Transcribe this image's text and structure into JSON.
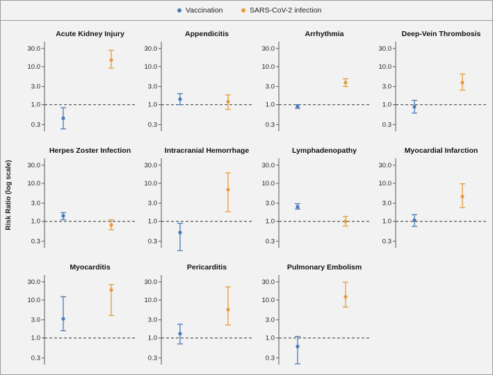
{
  "legend": {
    "vaccination": "Vaccination",
    "infection": "SARS-CoV-2 infection"
  },
  "colors": {
    "vaccination": "#4a78b8",
    "infection": "#e69a38",
    "reference_line": "#333333",
    "axis": "#555555"
  },
  "chart_data": {
    "type": "scatter",
    "subtype": "risk-ratio-errorbars",
    "ylabel": "Risk Ratio (log scale)",
    "yscale": "log",
    "ylim": [
      0.2,
      40
    ],
    "yticks": [
      0.3,
      1.0,
      3.0,
      10.0,
      30.0
    ],
    "ytick_labels": [
      "0.3",
      "1.0",
      "3.0",
      "10.0",
      "30.0"
    ],
    "reference_line": 1.0,
    "series_names": [
      "Vaccination",
      "SARS-CoV-2 infection"
    ],
    "panels": [
      {
        "title": "Acute Kidney Injury",
        "vaccination": {
          "rr": 0.44,
          "low": 0.23,
          "high": 0.83
        },
        "infection": {
          "rr": 14.8,
          "low": 9.1,
          "high": 27.0
        }
      },
      {
        "title": "Appendicitis",
        "vaccination": {
          "rr": 1.4,
          "low": 1.0,
          "high": 1.95
        },
        "infection": {
          "rr": 1.2,
          "low": 0.75,
          "high": 1.8
        }
      },
      {
        "title": "Arrhythmia",
        "vaccination": {
          "rr": 0.9,
          "low": 0.8,
          "high": 1.0
        },
        "infection": {
          "rr": 3.8,
          "low": 3.0,
          "high": 4.8
        }
      },
      {
        "title": "Deep-Vein Thrombosis",
        "vaccination": {
          "rr": 0.88,
          "low": 0.6,
          "high": 1.3
        },
        "infection": {
          "rr": 3.8,
          "low": 2.4,
          "high": 6.4
        }
      },
      {
        "title": "Herpes Zoster Infection",
        "vaccination": {
          "rr": 1.4,
          "low": 1.1,
          "high": 1.7
        },
        "infection": {
          "rr": 0.8,
          "low": 0.6,
          "high": 1.1
        }
      },
      {
        "title": "Intracranial Hemorrhage",
        "vaccination": {
          "rr": 0.51,
          "low": 0.17,
          "high": 0.89
        },
        "infection": {
          "rr": 6.8,
          "low": 1.8,
          "high": 18.8
        }
      },
      {
        "title": "Lymphadenopathy",
        "vaccination": {
          "rr": 2.4,
          "low": 2.1,
          "high": 2.9
        },
        "infection": {
          "rr": 1.0,
          "low": 0.75,
          "high": 1.35
        }
      },
      {
        "title": "Myocardial Infarction",
        "vaccination": {
          "rr": 1.07,
          "low": 0.74,
          "high": 1.5
        },
        "infection": {
          "rr": 4.5,
          "low": 2.3,
          "high": 9.7
        }
      },
      {
        "title": "Myocarditis",
        "vaccination": {
          "rr": 3.2,
          "low": 1.55,
          "high": 12.2
        },
        "infection": {
          "rr": 18.3,
          "low": 3.9,
          "high": 25.4
        }
      },
      {
        "title": "Pericarditis",
        "vaccination": {
          "rr": 1.3,
          "low": 0.7,
          "high": 2.3
        },
        "infection": {
          "rr": 5.6,
          "low": 2.2,
          "high": 22.0
        }
      },
      {
        "title": "Pulmonary Embolism",
        "vaccination": {
          "rr": 0.6,
          "low": 0.21,
          "high": 1.1
        },
        "infection": {
          "rr": 12.1,
          "low": 6.5,
          "high": 29.3
        }
      }
    ]
  }
}
